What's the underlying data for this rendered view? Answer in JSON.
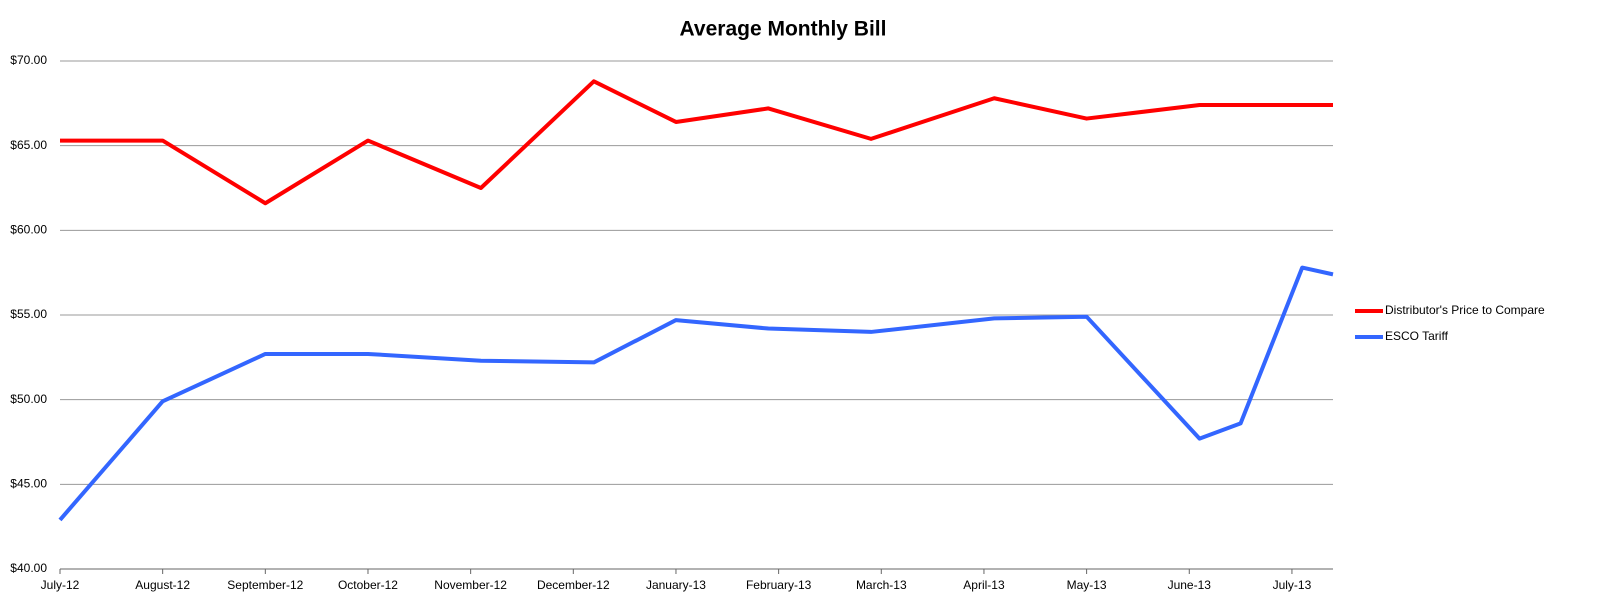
{
  "chart_data": {
    "type": "line",
    "title": "Average Monthly Bill",
    "xlim": [
      0,
      12.4
    ],
    "xticks": [
      {
        "value": 0,
        "label": "July-12"
      },
      {
        "value": 1,
        "label": "August-12"
      },
      {
        "value": 2,
        "label": "September-12"
      },
      {
        "value": 3,
        "label": "October-12"
      },
      {
        "value": 4,
        "label": "November-12"
      },
      {
        "value": 5,
        "label": "December-12"
      },
      {
        "value": 6,
        "label": "January-13"
      },
      {
        "value": 7,
        "label": "February-13"
      },
      {
        "value": 8,
        "label": "March-13"
      },
      {
        "value": 9,
        "label": "April-13"
      },
      {
        "value": 10,
        "label": "May-13"
      },
      {
        "value": 11,
        "label": "June-13"
      },
      {
        "value": 12,
        "label": "July-13"
      }
    ],
    "ylim": [
      40,
      70
    ],
    "yticks": [
      {
        "value": 40,
        "label": "$40.00"
      },
      {
        "value": 45,
        "label": "$45.00"
      },
      {
        "value": 50,
        "label": "$50.00"
      },
      {
        "value": 55,
        "label": "$55.00"
      },
      {
        "value": 60,
        "label": "$60.00"
      },
      {
        "value": 65,
        "label": "$65.00"
      },
      {
        "value": 70,
        "label": "$70.00"
      }
    ],
    "grid": true,
    "legend": "right",
    "series": [
      {
        "name": "Distributor's Price to Compare",
        "color": "#ff0000",
        "x": [
          0,
          1,
          2,
          3,
          4.1,
          5.2,
          6.0,
          6.9,
          7.9,
          9.1,
          10.0,
          11.1,
          12.4
        ],
        "values": [
          65.3,
          65.3,
          61.6,
          65.3,
          62.5,
          68.8,
          66.4,
          67.2,
          65.4,
          67.8,
          66.6,
          67.4,
          67.4
        ]
      },
      {
        "name": "ESCO Tariff",
        "color": "#3366ff",
        "x": [
          0,
          1,
          2,
          3,
          4.1,
          5.2,
          6.0,
          6.9,
          7.9,
          9.1,
          10.0,
          11.1,
          11.5,
          12.1,
          12.4
        ],
        "values": [
          42.9,
          49.9,
          52.7,
          52.7,
          52.3,
          52.2,
          54.7,
          54.2,
          54.0,
          54.8,
          54.9,
          47.7,
          48.6,
          57.8,
          57.4
        ]
      }
    ]
  }
}
